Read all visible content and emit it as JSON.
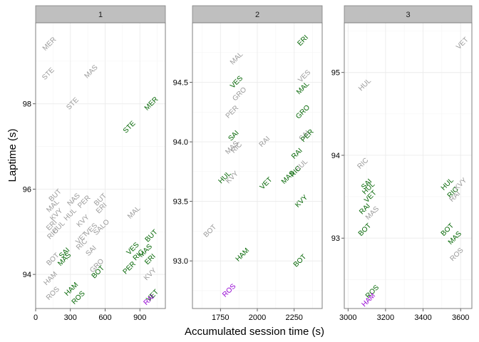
{
  "chart_data": {
    "type": "scatter",
    "xlabel": "Accumulated session time (s)",
    "ylabel": "Laptime (s)",
    "colors": {
      "grey": "#999999",
      "green": "#006400",
      "purple": "#9400D3"
    },
    "panels": [
      {
        "strip": "1",
        "xlim": [
          0,
          1120
        ],
        "ylim": [
          93.2,
          99.9
        ],
        "xticks": [
          0,
          300,
          600,
          900
        ],
        "yticks": [
          94,
          96,
          98
        ],
        "points": [
          {
            "label": "MER",
            "x": 120,
            "y": 99.4,
            "color": "grey"
          },
          {
            "label": "STE",
            "x": 110,
            "y": 98.7,
            "color": "grey"
          },
          {
            "label": "MAS",
            "x": 480,
            "y": 98.75,
            "color": "grey"
          },
          {
            "label": "STE",
            "x": 320,
            "y": 98.0,
            "color": "grey"
          },
          {
            "label": "MER",
            "x": 1000,
            "y": 98.0,
            "color": "green"
          },
          {
            "label": "STE",
            "x": 810,
            "y": 97.45,
            "color": "green"
          },
          {
            "label": "BUT",
            "x": 170,
            "y": 95.85,
            "color": "grey"
          },
          {
            "label": "NAS",
            "x": 330,
            "y": 95.75,
            "color": "grey"
          },
          {
            "label": "MAL",
            "x": 150,
            "y": 95.6,
            "color": "grey"
          },
          {
            "label": "PER",
            "x": 420,
            "y": 95.7,
            "color": "grey"
          },
          {
            "label": "BUT",
            "x": 560,
            "y": 95.75,
            "color": "grey"
          },
          {
            "label": "ERI",
            "x": 570,
            "y": 95.55,
            "color": "grey"
          },
          {
            "label": "KVY",
            "x": 180,
            "y": 95.4,
            "color": "grey"
          },
          {
            "label": "HUL",
            "x": 300,
            "y": 95.4,
            "color": "grey"
          },
          {
            "label": "KVY",
            "x": 410,
            "y": 95.25,
            "color": "grey"
          },
          {
            "label": "ERI",
            "x": 140,
            "y": 95.15,
            "color": "grey"
          },
          {
            "label": "RIC",
            "x": 150,
            "y": 94.95,
            "color": "grey"
          },
          {
            "label": "HUL",
            "x": 200,
            "y": 95.1,
            "color": "grey"
          },
          {
            "label": "VES",
            "x": 480,
            "y": 95.05,
            "color": "grey"
          },
          {
            "label": "SALO",
            "x": 570,
            "y": 95.1,
            "color": "grey"
          },
          {
            "label": "MAL",
            "x": 850,
            "y": 95.45,
            "color": "grey"
          },
          {
            "label": "VET",
            "x": 400,
            "y": 94.85,
            "color": "grey"
          },
          {
            "label": "RIC",
            "x": 400,
            "y": 94.7,
            "color": "grey"
          },
          {
            "label": "SAI",
            "x": 250,
            "y": 94.5,
            "color": "green"
          },
          {
            "label": "MAS",
            "x": 250,
            "y": 94.35,
            "color": "green"
          },
          {
            "label": "SAI",
            "x": 480,
            "y": 94.55,
            "color": "grey"
          },
          {
            "label": "BOT",
            "x": 150,
            "y": 94.35,
            "color": "grey"
          },
          {
            "label": "GRO",
            "x": 530,
            "y": 94.2,
            "color": "grey"
          },
          {
            "label": "BOT",
            "x": 540,
            "y": 94.05,
            "color": "green"
          },
          {
            "label": "VES",
            "x": 840,
            "y": 94.6,
            "color": "green"
          },
          {
            "label": "RIC",
            "x": 890,
            "y": 94.45,
            "color": "green"
          },
          {
            "label": "MAS",
            "x": 950,
            "y": 94.55,
            "color": "green"
          },
          {
            "label": "BUT",
            "x": 1000,
            "y": 94.9,
            "color": "green"
          },
          {
            "label": "PER",
            "x": 810,
            "y": 94.15,
            "color": "green"
          },
          {
            "label": "ERI",
            "x": 990,
            "y": 94.35,
            "color": "green"
          },
          {
            "label": "KVY",
            "x": 990,
            "y": 94.0,
            "color": "grey"
          },
          {
            "label": "HAM",
            "x": 130,
            "y": 93.9,
            "color": "grey"
          },
          {
            "label": "HAM",
            "x": 310,
            "y": 93.65,
            "color": "green"
          },
          {
            "label": "ROS",
            "x": 150,
            "y": 93.55,
            "color": "grey"
          },
          {
            "label": "ROS",
            "x": 370,
            "y": 93.45,
            "color": "green"
          },
          {
            "label": "VET",
            "x": 1010,
            "y": 93.5,
            "color": "green"
          },
          {
            "label": "RAI",
            "x": 980,
            "y": 93.4,
            "color": "purple"
          }
        ]
      },
      {
        "strip": "2",
        "xlim": [
          1560,
          2440
        ],
        "ylim": [
          92.6,
          95.0
        ],
        "xticks": [
          1750,
          2000,
          2250
        ],
        "yticks": [
          93.0,
          93.5,
          94.0,
          94.5
        ],
        "points": [
          {
            "label": "MAL",
            "x": 1860,
            "y": 94.7,
            "color": "grey"
          },
          {
            "label": "ERI",
            "x": 2310,
            "y": 94.85,
            "color": "green"
          },
          {
            "label": "VES",
            "x": 1860,
            "y": 94.5,
            "color": "green"
          },
          {
            "label": "GRO",
            "x": 1880,
            "y": 94.4,
            "color": "grey"
          },
          {
            "label": "VES",
            "x": 2320,
            "y": 94.55,
            "color": "grey"
          },
          {
            "label": "MAL",
            "x": 2310,
            "y": 94.45,
            "color": "green"
          },
          {
            "label": "PER",
            "x": 1830,
            "y": 94.25,
            "color": "grey"
          },
          {
            "label": "GRO",
            "x": 2310,
            "y": 94.25,
            "color": "green"
          },
          {
            "label": "SAI",
            "x": 1840,
            "y": 94.05,
            "color": "green"
          },
          {
            "label": "MAS",
            "x": 1830,
            "y": 93.95,
            "color": "grey"
          },
          {
            "label": "RIC",
            "x": 1860,
            "y": 93.95,
            "color": "grey"
          },
          {
            "label": "RAI",
            "x": 2050,
            "y": 94.0,
            "color": "grey"
          },
          {
            "label": "SAI",
            "x": 2320,
            "y": 94.05,
            "color": "grey"
          },
          {
            "label": "PER",
            "x": 2340,
            "y": 94.05,
            "color": "green"
          },
          {
            "label": "RAI",
            "x": 2270,
            "y": 93.9,
            "color": "green"
          },
          {
            "label": "HUL",
            "x": 2300,
            "y": 93.8,
            "color": "grey"
          },
          {
            "label": "KVY",
            "x": 1830,
            "y": 93.7,
            "color": "grey"
          },
          {
            "label": "HUL",
            "x": 1780,
            "y": 93.7,
            "color": "green"
          },
          {
            "label": "VET",
            "x": 2060,
            "y": 93.65,
            "color": "green"
          },
          {
            "label": "MAS",
            "x": 2210,
            "y": 93.7,
            "color": "green"
          },
          {
            "label": "RIC",
            "x": 2260,
            "y": 93.75,
            "color": "green"
          },
          {
            "label": "KVY",
            "x": 2300,
            "y": 93.5,
            "color": "green"
          },
          {
            "label": "BOT",
            "x": 1680,
            "y": 93.25,
            "color": "grey"
          },
          {
            "label": "HAM",
            "x": 1900,
            "y": 93.05,
            "color": "green"
          },
          {
            "label": "BOT",
            "x": 2290,
            "y": 93.0,
            "color": "green"
          },
          {
            "label": "ROS",
            "x": 1810,
            "y": 92.75,
            "color": "purple"
          }
        ]
      },
      {
        "strip": "3",
        "xlim": [
          2980,
          3660
        ],
        "ylim": [
          92.15,
          95.6
        ],
        "xticks": [
          3000,
          3200,
          3400,
          3600
        ],
        "yticks": [
          93,
          94,
          95
        ],
        "points": [
          {
            "label": "VET",
            "x": 3610,
            "y": 95.35,
            "color": "grey"
          },
          {
            "label": "HUL",
            "x": 3090,
            "y": 94.85,
            "color": "grey"
          },
          {
            "label": "RIC",
            "x": 3080,
            "y": 93.9,
            "color": "grey"
          },
          {
            "label": "SAI",
            "x": 3100,
            "y": 93.65,
            "color": "green"
          },
          {
            "label": "HUL",
            "x": 3110,
            "y": 93.6,
            "color": "green"
          },
          {
            "label": "VET",
            "x": 3120,
            "y": 93.5,
            "color": "green"
          },
          {
            "label": "RAI",
            "x": 3090,
            "y": 93.35,
            "color": "green"
          },
          {
            "label": "MAS",
            "x": 3130,
            "y": 93.3,
            "color": "grey"
          },
          {
            "label": "BOT",
            "x": 3090,
            "y": 93.1,
            "color": "green"
          },
          {
            "label": "HUL",
            "x": 3530,
            "y": 93.65,
            "color": "green"
          },
          {
            "label": "KVY",
            "x": 3600,
            "y": 93.65,
            "color": "grey"
          },
          {
            "label": "RIC",
            "x": 3560,
            "y": 93.55,
            "color": "green"
          },
          {
            "label": "RAI",
            "x": 3570,
            "y": 93.5,
            "color": "grey"
          },
          {
            "label": "BOT",
            "x": 3530,
            "y": 93.1,
            "color": "green"
          },
          {
            "label": "MAS",
            "x": 3570,
            "y": 93.0,
            "color": "green"
          },
          {
            "label": "ROS",
            "x": 3580,
            "y": 92.8,
            "color": "grey"
          },
          {
            "label": "ROS",
            "x": 3130,
            "y": 92.35,
            "color": "green"
          },
          {
            "label": "HAM",
            "x": 3110,
            "y": 92.25,
            "color": "purple"
          }
        ]
      }
    ]
  }
}
